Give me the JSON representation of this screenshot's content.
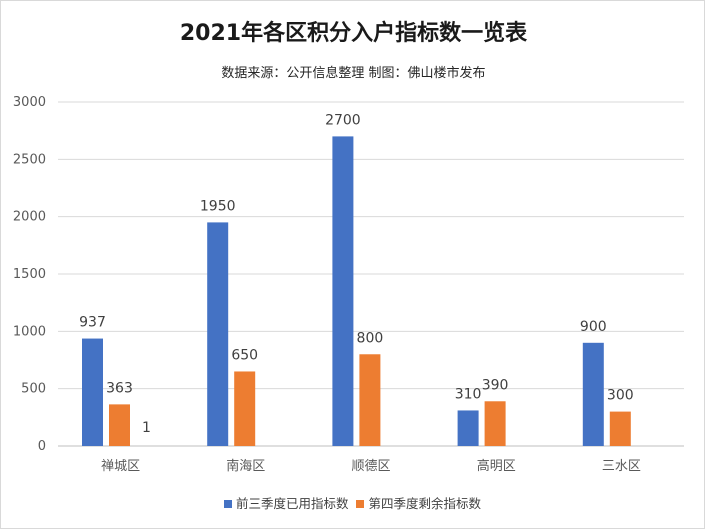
{
  "chart_data": {
    "type": "bar",
    "title": "2021年各区积分入户指标数一览表",
    "subtitle": "数据来源：公开信息整理 制图：佛山楼市发布",
    "categories": [
      "禅城区",
      "南海区",
      "顺德区",
      "高明区",
      "三水区"
    ],
    "series": [
      {
        "name": "前三季度已用指标数",
        "color": "#4472C4",
        "values": [
          937,
          1950,
          2700,
          310,
          900
        ]
      },
      {
        "name": "第四季度剩余指标数",
        "color": "#ED7D31",
        "values": [
          363,
          650,
          800,
          390,
          300
        ]
      }
    ],
    "annotations": [
      {
        "category": "禅城区",
        "text": "1"
      }
    ],
    "ylim": [
      0,
      3000
    ],
    "yticks": [
      0,
      500,
      1000,
      1500,
      2000,
      2500,
      3000
    ],
    "grid": true,
    "legend_position": "bottom"
  }
}
